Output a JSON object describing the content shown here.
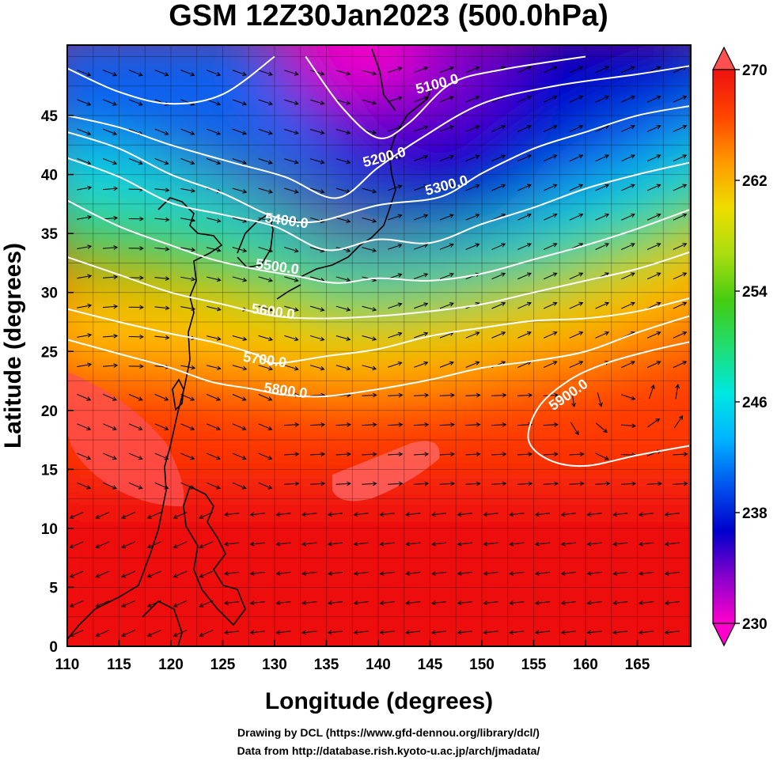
{
  "title": "GSM 12Z30Jan2023 (500.0hPa)",
  "chart_data": {
    "type": "heatmap",
    "title": "GSM 12Z30Jan2023 (500.0hPa)",
    "xlabel": "Longitude (degrees)",
    "ylabel": "Latitude  (degrees)",
    "xlim": [
      110,
      170
    ],
    "ylim": [
      0,
      50
    ],
    "x_ticks": [
      "110",
      "115",
      "120",
      "125",
      "130",
      "135",
      "140",
      "145",
      "150",
      "155",
      "160",
      "165"
    ],
    "y_ticks": [
      "0",
      "5",
      "10",
      "15",
      "20",
      "25",
      "30",
      "35",
      "40",
      "45"
    ],
    "color_variable_range": [
      230,
      270
    ],
    "colorbar_ticks": [
      "270",
      "262",
      "254",
      "246",
      "238",
      "230"
    ],
    "colormap": [
      "#ff00cc",
      "#8800cc",
      "#0000cc",
      "#0055ee",
      "#00b4ff",
      "#00e8e0",
      "#20dd70",
      "#44cc11",
      "#aadd11",
      "#eedd00",
      "#ff9900",
      "#ff4400",
      "#ee1111"
    ],
    "grid": true,
    "contour_lines": [
      {
        "label": "5100.0",
        "label_pos": [
          145.8,
          47.3
        ],
        "points": [
          [
            110,
            49.0
          ],
          [
            115,
            47.0
          ],
          [
            120,
            46.0
          ],
          [
            125,
            46.8
          ],
          [
            130,
            50.0
          ]
        ]
      },
      {
        "label": "5100.0",
        "label_pos": [
          145.8,
          47.3
        ],
        "points": [
          [
            133,
            50.0
          ],
          [
            136.5,
            45.7
          ],
          [
            140,
            43.1
          ],
          [
            143,
            44.4
          ],
          [
            147,
            47.7
          ],
          [
            152,
            48.9
          ],
          [
            160,
            50.0
          ]
        ]
      },
      {
        "label": "5200.0",
        "label_pos": [
          140.7,
          41.1
        ],
        "points": [
          [
            110,
            45.0
          ],
          [
            115,
            44.0
          ],
          [
            120,
            42.5
          ],
          [
            126,
            41.0
          ],
          [
            131,
            39.8
          ],
          [
            136,
            38.0
          ],
          [
            140,
            40.6
          ],
          [
            144,
            43.0
          ],
          [
            150,
            46.0
          ],
          [
            157,
            47.5
          ],
          [
            165,
            48.5
          ],
          [
            170,
            49.2
          ]
        ]
      },
      {
        "label": "5300.0",
        "label_pos": [
          146.7,
          38.7
        ],
        "points": [
          [
            110,
            43.6
          ],
          [
            115,
            42.2
          ],
          [
            120,
            40.0
          ],
          [
            125,
            38.4
          ],
          [
            130,
            36.4
          ],
          [
            134,
            36.0
          ],
          [
            140,
            37.4
          ],
          [
            146,
            38.1
          ],
          [
            150,
            40.1
          ],
          [
            155,
            42.2
          ],
          [
            160,
            43.6
          ],
          [
            165,
            45.0
          ],
          [
            170,
            45.8
          ]
        ]
      },
      {
        "label": "5400.0",
        "label_pos": [
          131.1,
          35.7
        ],
        "points": [
          [
            110,
            41.4
          ],
          [
            115,
            39.8
          ],
          [
            120,
            37.6
          ],
          [
            125,
            36.6
          ],
          [
            130,
            35.6
          ],
          [
            135,
            33.6
          ],
          [
            140,
            34.5
          ],
          [
            145,
            34.2
          ],
          [
            150,
            35.8
          ],
          [
            155,
            37.2
          ],
          [
            160,
            38.8
          ],
          [
            165,
            40.0
          ],
          [
            170,
            41.0
          ]
        ]
      },
      {
        "label": "5500.0",
        "label_pos": [
          130.2,
          31.8
        ],
        "points": [
          [
            110,
            37.8
          ],
          [
            115,
            35.6
          ],
          [
            120,
            34.0
          ],
          [
            124,
            32.8
          ],
          [
            128,
            32.0
          ],
          [
            132,
            31.4
          ],
          [
            136,
            30.8
          ],
          [
            140,
            31.2
          ],
          [
            145,
            31.0
          ],
          [
            150,
            31.6
          ],
          [
            155,
            32.8
          ],
          [
            160,
            34.0
          ],
          [
            165,
            35.4
          ],
          [
            170,
            37.0
          ]
        ]
      },
      {
        "label": "5600.0",
        "label_pos": [
          129.8,
          28.0
        ],
        "points": [
          [
            110,
            33.0
          ],
          [
            115,
            31.5
          ],
          [
            120,
            30.0
          ],
          [
            125,
            29.0
          ],
          [
            130,
            28.0
          ],
          [
            135,
            27.8
          ],
          [
            140,
            28.0
          ],
          [
            145,
            28.4
          ],
          [
            150,
            29.0
          ],
          [
            155,
            30.0
          ],
          [
            160,
            31.0
          ],
          [
            165,
            32.0
          ],
          [
            170,
            33.4
          ]
        ]
      },
      {
        "label": "5700.0",
        "label_pos": [
          129.0,
          23.9
        ],
        "points": [
          [
            110,
            28.6
          ],
          [
            115,
            27.5
          ],
          [
            120,
            26.5
          ],
          [
            124,
            25.8
          ],
          [
            128,
            24.8
          ],
          [
            130,
            24.0
          ],
          [
            135,
            24.6
          ],
          [
            140,
            25.2
          ],
          [
            145,
            26.3
          ],
          [
            150,
            27.0
          ],
          [
            155,
            27.6
          ],
          [
            160,
            27.8
          ],
          [
            165,
            28.4
          ],
          [
            170,
            29.5
          ]
        ]
      },
      {
        "label": "5800.0",
        "label_pos": [
          131.0,
          21.3
        ],
        "points": [
          [
            110,
            26.0
          ],
          [
            115,
            24.8
          ],
          [
            120,
            23.6
          ],
          [
            124,
            22.4
          ],
          [
            128,
            21.8
          ],
          [
            131,
            21.3
          ],
          [
            135,
            21.2
          ],
          [
            140,
            21.8
          ],
          [
            145,
            22.6
          ],
          [
            150,
            23.6
          ],
          [
            155,
            24.2
          ],
          [
            160,
            25.0
          ],
          [
            165,
            26.6
          ],
          [
            170,
            28.0
          ]
        ]
      },
      {
        "label": "5900.0",
        "label_pos": [
          158.6,
          21.0
        ],
        "points": [
          [
            170,
            17.0
          ],
          [
            165,
            16.2
          ],
          [
            160,
            15.3
          ],
          [
            156.5,
            15.8
          ],
          [
            154.5,
            17.5
          ],
          [
            155.5,
            20.3
          ],
          [
            158.5,
            22.6
          ],
          [
            162,
            24.0
          ],
          [
            166,
            25.0
          ],
          [
            170,
            25.8
          ]
        ]
      }
    ]
  },
  "colorbar": {
    "ticks": [
      "270",
      "262",
      "254",
      "246",
      "238",
      "230"
    ],
    "colors": [
      "#ff00cc",
      "#8800cc",
      "#0000cc",
      "#0055ee",
      "#00b4ff",
      "#00e8e0",
      "#20dd70",
      "#44cc11",
      "#aadd11",
      "#eedd00",
      "#ff9900",
      "#ff4400",
      "#ee1111"
    ]
  },
  "credits": {
    "line1": "Drawing by DCL (https://www.gfd-dennou.org/library/dcl/)",
    "line2": "Data from http://database.rish.kyoto-u.ac.jp/arch/jmadata/"
  }
}
